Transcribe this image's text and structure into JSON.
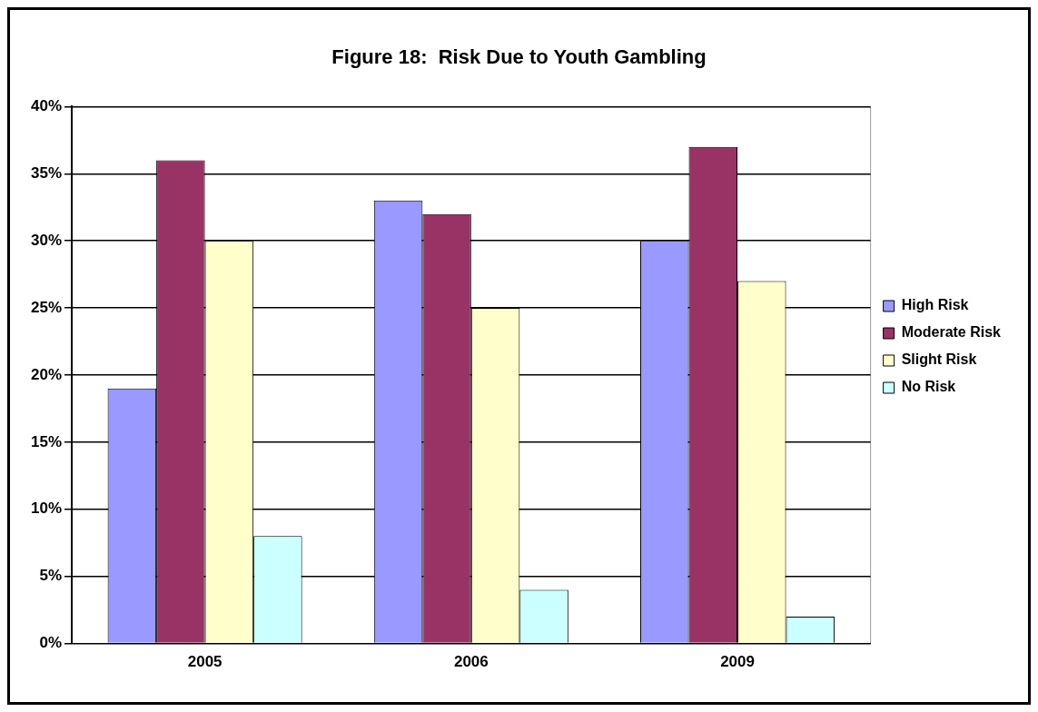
{
  "chart_data": {
    "type": "bar",
    "title": "Figure 18:  Risk Due to Youth Gambling",
    "categories": [
      "2005",
      "2006",
      "2009"
    ],
    "series": [
      {
        "name": "High Risk",
        "color": "#9999ff",
        "values": [
          19,
          33,
          30
        ]
      },
      {
        "name": "Moderate Risk",
        "color": "#993366",
        "values": [
          36,
          32,
          37
        ]
      },
      {
        "name": "Slight Risk",
        "color": "#ffffcc",
        "values": [
          30,
          25,
          27
        ]
      },
      {
        "name": "No Risk",
        "color": "#ccffff",
        "values": [
          8,
          4,
          2
        ]
      }
    ],
    "ylim": [
      0,
      40
    ],
    "yticks": [
      {
        "value": 0,
        "label": "0%"
      },
      {
        "value": 5,
        "label": "5%"
      },
      {
        "value": 10,
        "label": "10%"
      },
      {
        "value": 15,
        "label": "15%"
      },
      {
        "value": 20,
        "label": "20%"
      },
      {
        "value": 25,
        "label": "25%"
      },
      {
        "value": 30,
        "label": "30%"
      },
      {
        "value": 35,
        "label": "35%"
      },
      {
        "value": 40,
        "label": "40%"
      }
    ],
    "grid": "y",
    "legend": "right"
  }
}
